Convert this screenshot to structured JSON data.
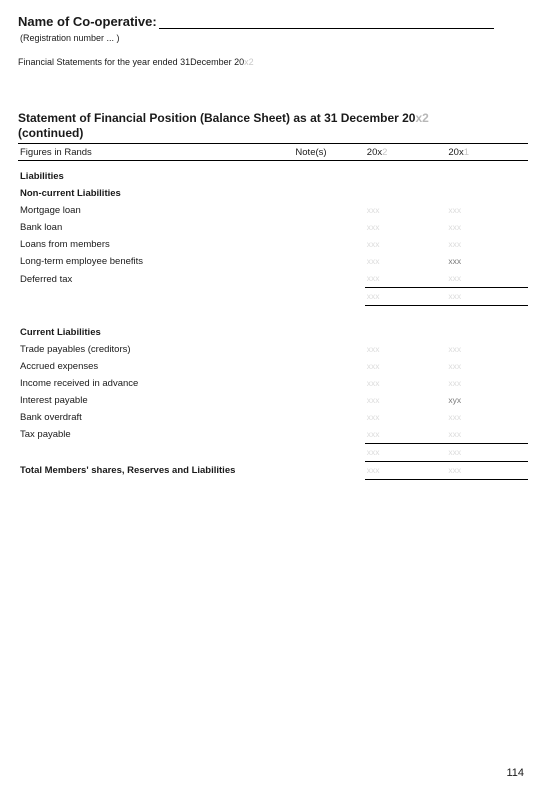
{
  "header": {
    "coop_label": "Name of Co-operative:",
    "reg_number": "(Registration number ... )",
    "fin_stmt_prefix": "Financial Statements for the year ended 31December 20",
    "fin_stmt_suffix": "x2"
  },
  "title": {
    "line1_prefix": "Statement of Financial Position (Balance Sheet) as at 31 December 20",
    "line1_suffix": "x2",
    "line2": "(continued)"
  },
  "columns": {
    "desc": "Figures in Rands",
    "notes": "Note(s)",
    "y1_prefix": "20x",
    "y1_suffix": "2",
    "y2_prefix": "20x",
    "y2_suffix": "1"
  },
  "sections": {
    "liabilities": "Liabilities",
    "noncurrent": "Non-current Liabilities",
    "current": "Current Liabilities",
    "total": "Total Members' shares, Reserves and Liabilities"
  },
  "rows": {
    "mortgage": "Mortgage loan",
    "bankloan": "Bank loan",
    "loans_members": "Loans from members",
    "lt_emp_benefits": "Long-term employee benefits",
    "deferred_tax": "Deferred tax",
    "trade_payables": "Trade payables (creditors)",
    "accrued": "Accrued expenses",
    "income_adv": "Income received in advance",
    "interest_payable": "Interest payable",
    "bank_overdraft": "Bank overdraft",
    "tax_payable": "Tax payable"
  },
  "placeholders": {
    "xxx_faint": "xxx",
    "xxx_strong": "xxx",
    "xyx": "xyx"
  },
  "page_number": "114"
}
